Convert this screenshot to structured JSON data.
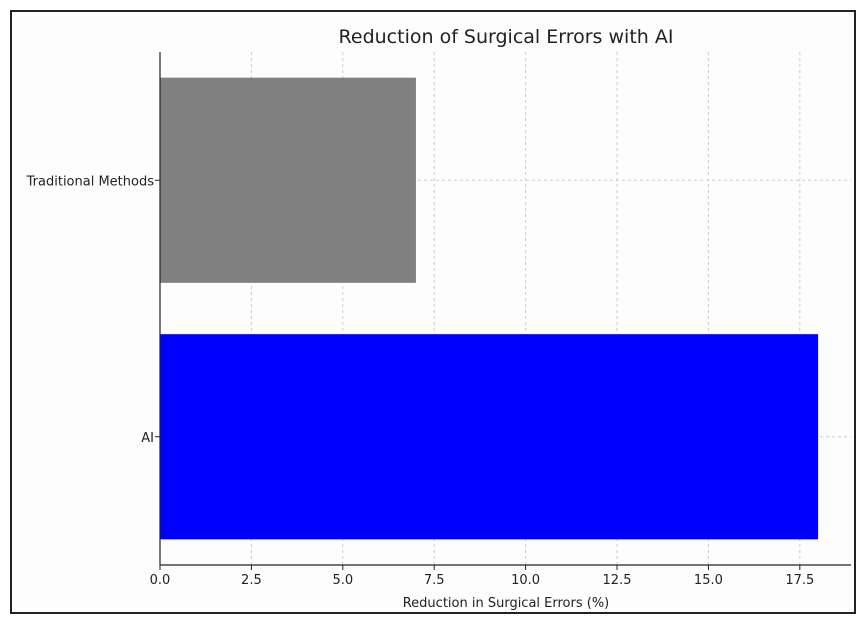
{
  "chart_data": {
    "type": "bar",
    "orientation": "horizontal",
    "title": "Reduction of Surgical Errors with AI",
    "xlabel": "Reduction in Surgical Errors (%)",
    "ylabel": "",
    "categories": [
      "AI",
      "Traditional Methods"
    ],
    "values": [
      18,
      7
    ],
    "colors": [
      "#0000ff",
      "#808080"
    ],
    "xlim": [
      0,
      18.9
    ],
    "xticks": [
      0.0,
      2.5,
      5.0,
      7.5,
      10.0,
      12.5,
      15.0,
      17.5
    ],
    "xtick_labels": [
      "0.0",
      "2.5",
      "5.0",
      "7.5",
      "10.0",
      "12.5",
      "15.0",
      "17.5"
    ],
    "grid": true
  }
}
